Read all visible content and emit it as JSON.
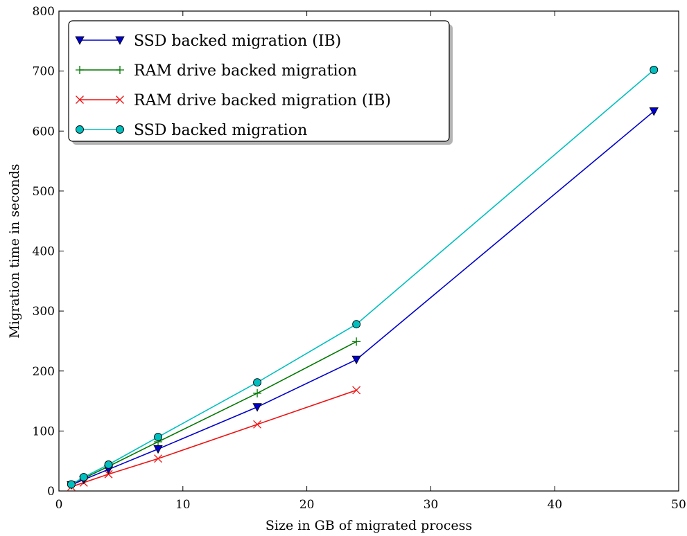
{
  "chart_data": {
    "type": "line",
    "xlabel": "Size in GB of migrated process",
    "ylabel": "Migration time in seconds",
    "xlim": [
      0,
      50
    ],
    "ylim": [
      0,
      800
    ],
    "xticks": [
      0,
      10,
      20,
      30,
      40,
      50
    ],
    "yticks": [
      0,
      100,
      200,
      300,
      400,
      500,
      600,
      700,
      800
    ],
    "grid": false,
    "legend_position": "top-left",
    "series": [
      {
        "name": "SSD backed migration (IB)",
        "color": "#0000cc",
        "marker": "triangle-down",
        "x": [
          1,
          2,
          4,
          8,
          16,
          24,
          48
        ],
        "y": [
          10,
          19,
          36,
          70,
          140,
          219,
          633
        ]
      },
      {
        "name": "RAM drive backed migration",
        "color": "#007700",
        "marker": "plus",
        "x": [
          1,
          2,
          4,
          8,
          16,
          24
        ],
        "y": [
          10,
          21,
          41,
          82,
          163,
          249
        ]
      },
      {
        "name": "RAM drive backed migration (IB)",
        "color": "#ee1111",
        "marker": "x",
        "x": [
          1,
          2,
          4,
          8,
          16,
          24
        ],
        "y": [
          7,
          14,
          28,
          54,
          111,
          168
        ]
      },
      {
        "name": "SSD backed migration",
        "color": "#00bfbf",
        "marker": "circle",
        "x": [
          1,
          2,
          4,
          8,
          16,
          24,
          48
        ],
        "y": [
          11,
          23,
          44,
          90,
          181,
          278,
          702
        ]
      }
    ]
  }
}
